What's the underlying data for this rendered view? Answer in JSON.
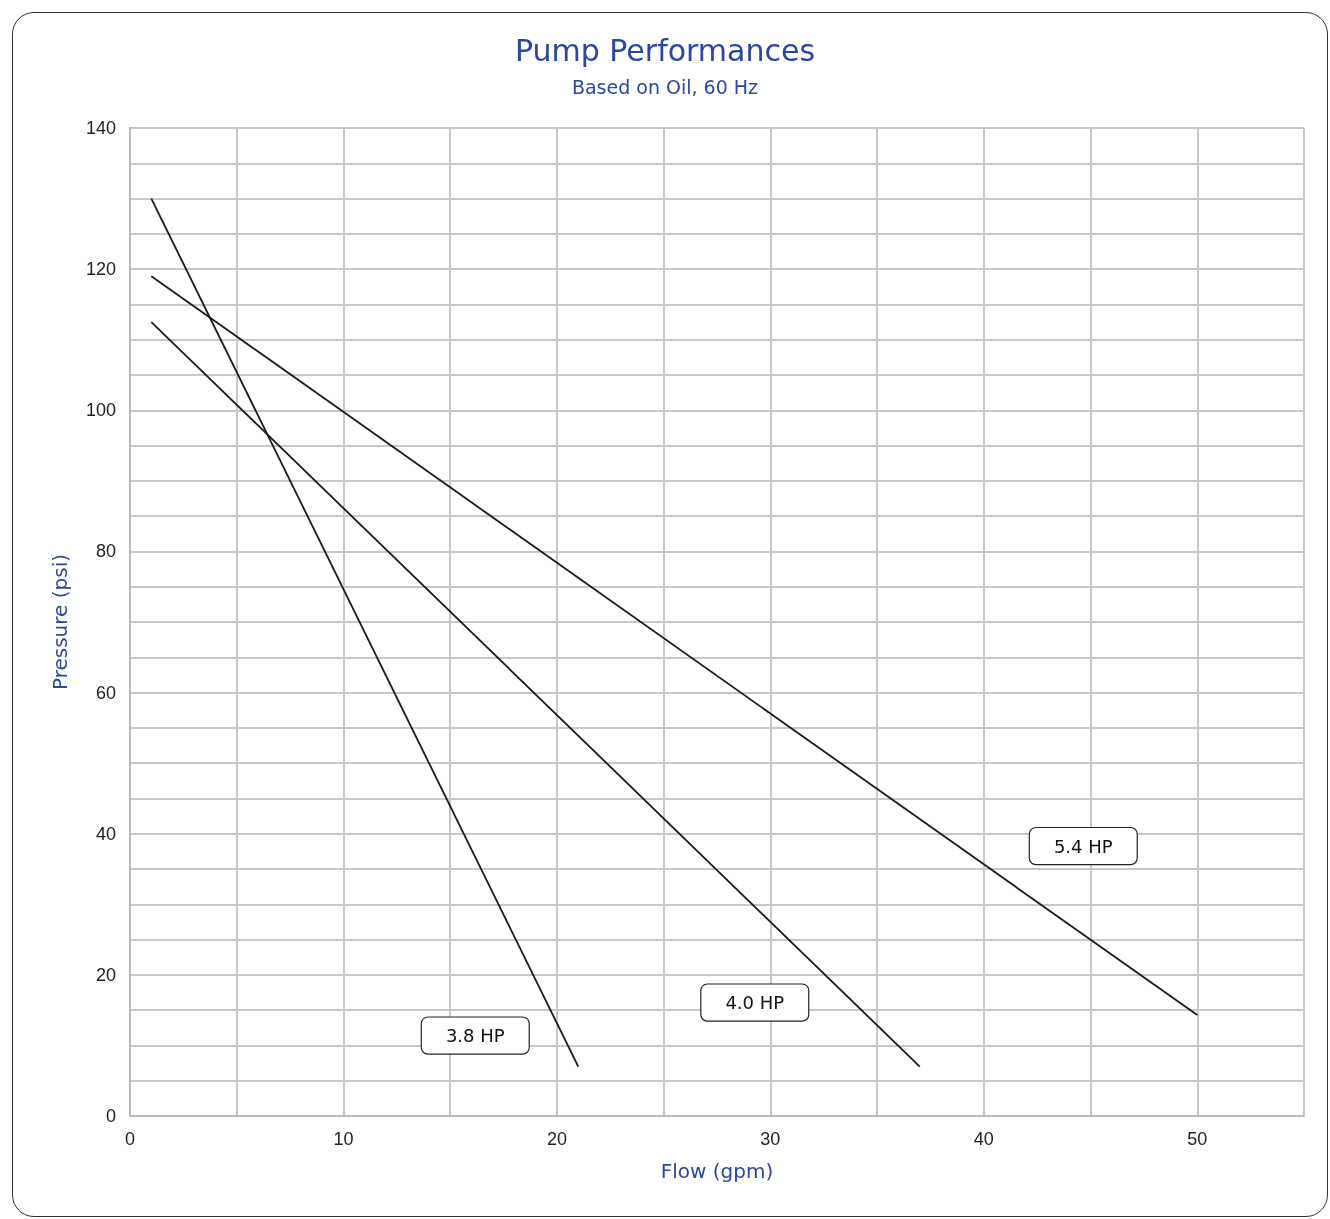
{
  "chart_data": {
    "type": "line",
    "title": "Pump Performances",
    "subtitle": "Based on Oil, 60 Hz",
    "xlabel": "Flow (gpm)",
    "ylabel": "Pressure (psi)",
    "series": [
      {
        "name": "3.8 HP",
        "color": "#1a1a1a",
        "x": [
          1,
          21
        ],
        "values": [
          130,
          7
        ]
      },
      {
        "name": "4.0 HP",
        "color": "#1a1a1a",
        "x": [
          1,
          37
        ],
        "values": [
          112.5,
          7
        ]
      },
      {
        "name": "5.4 HP",
        "color": "#1a1a1a",
        "x": [
          1,
          50
        ],
        "values": [
          119,
          14.3
        ]
      }
    ],
    "xlim": [
      0,
      55
    ],
    "xticks": [
      0,
      {
        "value": 5,
        "label": null
      },
      10,
      {
        "value": 15,
        "label": null
      },
      20,
      {
        "value": 25,
        "label": null
      },
      30,
      {
        "value": 35,
        "label": null
      },
      40,
      {
        "value": 45,
        "label": null
      },
      50,
      {
        "value": 55,
        "label": null
      }
    ],
    "ylim": [
      0,
      140
    ],
    "yticks": [
      0,
      {
        "value": 5,
        "label": null
      },
      {
        "value": 10,
        "label": null
      },
      {
        "value": 15,
        "label": null
      },
      20,
      {
        "value": 25,
        "label": null
      },
      {
        "value": 30,
        "label": null
      },
      {
        "value": 35,
        "label": null
      },
      40,
      {
        "value": 45,
        "label": null
      },
      {
        "value": 50,
        "label": null
      },
      {
        "value": 55,
        "label": null
      },
      60,
      {
        "value": 65,
        "label": null
      },
      {
        "value": 70,
        "label": null
      },
      {
        "value": 75,
        "label": null
      },
      80,
      {
        "value": 85,
        "label": null
      },
      {
        "value": 90,
        "label": null
      },
      {
        "value": 95,
        "label": null
      },
      100,
      {
        "value": 105,
        "label": null
      },
      {
        "value": 110,
        "label": null
      },
      {
        "value": 115,
        "label": null
      },
      120,
      {
        "value": 125,
        "label": null
      },
      {
        "value": 130,
        "label": null
      },
      {
        "value": 135,
        "label": null
      },
      140
    ],
    "grid": true,
    "marker": "none",
    "line_style": "solid"
  }
}
